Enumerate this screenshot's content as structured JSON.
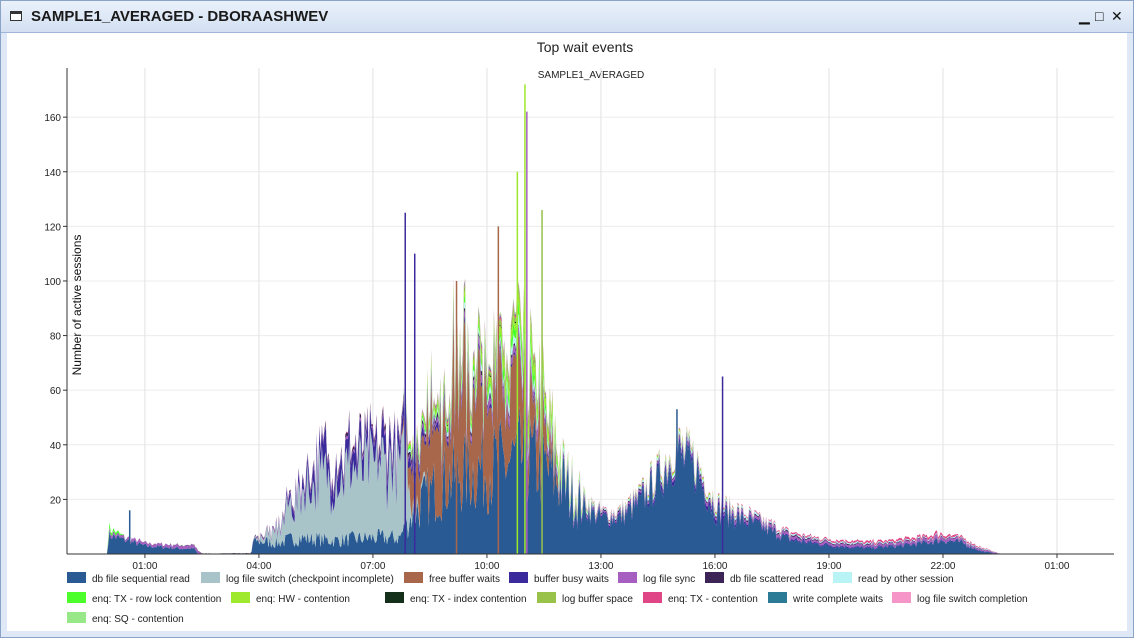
{
  "window": {
    "title": "SAMPLE1_AVERAGED - DBORAASHWEV",
    "min": "▁",
    "max": "□",
    "close": "✕"
  },
  "chart_data": {
    "type": "area",
    "title": "Top wait events",
    "subtitle": "SAMPLE1_AVERAGED",
    "ylabel": "Number of active sessions",
    "xlabel": "",
    "ylim": [
      0,
      178
    ],
    "yticks": [
      20,
      40,
      60,
      80,
      100,
      120,
      140,
      160
    ],
    "xlim_hours": [
      -1.05,
      26.5
    ],
    "xticks": [
      {
        "h": 1,
        "label": "01:00"
      },
      {
        "h": 4,
        "label": "04:00"
      },
      {
        "h": 7,
        "label": "07:00"
      },
      {
        "h": 10,
        "label": "10:00"
      },
      {
        "h": 13,
        "label": "13:00"
      },
      {
        "h": 16,
        "label": "16:00"
      },
      {
        "h": 19,
        "label": "19:00"
      },
      {
        "h": 22,
        "label": "22:00"
      },
      {
        "h": 25,
        "label": "01:00"
      }
    ],
    "grid": true,
    "legend_position": "bottom",
    "stacked": true,
    "series": [
      {
        "name": "db file sequential read",
        "color": "#2a5a94",
        "points": [
          [
            0,
            0
          ],
          [
            0.05,
            7
          ],
          [
            0.5,
            5
          ],
          [
            1,
            3
          ],
          [
            2,
            2
          ],
          [
            2.3,
            2
          ],
          [
            2.4,
            0
          ],
          [
            3.8,
            0
          ],
          [
            3.85,
            5
          ],
          [
            4.5,
            4
          ],
          [
            5,
            6
          ],
          [
            6,
            5
          ],
          [
            7,
            6
          ],
          [
            7.7,
            6
          ],
          [
            8,
            14
          ],
          [
            8.5,
            22
          ],
          [
            9,
            28
          ],
          [
            9.5,
            30
          ],
          [
            10,
            32
          ],
          [
            10.5,
            33
          ],
          [
            11,
            36
          ],
          [
            11.5,
            32
          ],
          [
            12,
            25
          ],
          [
            12.5,
            17
          ],
          [
            13,
            13
          ],
          [
            13.5,
            13
          ],
          [
            14,
            18
          ],
          [
            14.5,
            26
          ],
          [
            15,
            36
          ],
          [
            15.5,
            30
          ],
          [
            16,
            15
          ],
          [
            16.5,
            13
          ],
          [
            17,
            11
          ],
          [
            17.5,
            8
          ],
          [
            18,
            5
          ],
          [
            19,
            3
          ],
          [
            20,
            2
          ],
          [
            21,
            3
          ],
          [
            22,
            5
          ],
          [
            22.5,
            4
          ],
          [
            23,
            1
          ],
          [
            23.5,
            0
          ],
          [
            26.5,
            0
          ]
        ]
      },
      {
        "name": "log file switch (checkpoint incomplete)",
        "color": "#a9c4c8",
        "points": [
          [
            0,
            0
          ],
          [
            3.85,
            0
          ],
          [
            4.5,
            5
          ],
          [
            5,
            15
          ],
          [
            5.5,
            22
          ],
          [
            6,
            24
          ],
          [
            6.5,
            25
          ],
          [
            7,
            26
          ],
          [
            7.5,
            27
          ],
          [
            7.9,
            24
          ],
          [
            8,
            4
          ],
          [
            8.5,
            0
          ],
          [
            26.5,
            0
          ]
        ]
      },
      {
        "name": "free buffer waits",
        "color": "#a8674a",
        "points": [
          [
            0,
            0
          ],
          [
            7.7,
            0
          ],
          [
            8,
            10
          ],
          [
            8.5,
            25
          ],
          [
            9,
            30
          ],
          [
            9.5,
            32
          ],
          [
            10,
            28
          ],
          [
            10.5,
            26
          ],
          [
            11,
            22
          ],
          [
            11.5,
            10
          ],
          [
            12,
            0
          ],
          [
            26.5,
            0
          ]
        ]
      },
      {
        "name": "buffer busy waits",
        "color": "#3b2a9c",
        "points": [
          [
            0,
            0
          ],
          [
            4.4,
            0
          ],
          [
            5,
            3
          ],
          [
            5.5,
            6
          ],
          [
            6,
            7
          ],
          [
            7,
            6
          ],
          [
            7.5,
            6
          ],
          [
            8,
            3
          ],
          [
            9,
            1.5
          ],
          [
            10,
            1
          ],
          [
            12,
            1
          ],
          [
            13,
            0.5
          ],
          [
            15,
            1.5
          ],
          [
            16,
            1.5
          ],
          [
            17,
            0.5
          ],
          [
            26.5,
            0
          ]
        ]
      },
      {
        "name": "log file sync",
        "color": "#a65fc1",
        "points": [
          [
            0,
            0
          ],
          [
            0.05,
            1
          ],
          [
            2.4,
            1
          ],
          [
            2.5,
            0
          ],
          [
            3.8,
            0
          ],
          [
            4,
            0.5
          ],
          [
            8,
            1
          ],
          [
            10,
            2
          ],
          [
            11,
            3
          ],
          [
            12,
            1
          ],
          [
            13,
            0.5
          ],
          [
            16,
            1
          ],
          [
            20,
            0.8
          ],
          [
            22,
            1
          ],
          [
            23,
            0.5
          ],
          [
            23.5,
            0
          ],
          [
            26.5,
            0
          ]
        ]
      },
      {
        "name": "db file scattered read",
        "color": "#3c2456",
        "points": [
          [
            0,
            0
          ],
          [
            4,
            0.3
          ],
          [
            8,
            1.5
          ],
          [
            10,
            1
          ],
          [
            12,
            0.5
          ],
          [
            16,
            0.5
          ],
          [
            20,
            0.3
          ],
          [
            23,
            0.2
          ],
          [
            23.5,
            0
          ],
          [
            26.5,
            0
          ]
        ]
      },
      {
        "name": "read by other session",
        "color": "#b8f4f6",
        "points": [
          [
            0,
            0
          ],
          [
            7.5,
            0
          ],
          [
            8,
            1
          ],
          [
            10,
            2
          ],
          [
            11,
            3
          ],
          [
            12,
            1.5
          ],
          [
            13,
            0.5
          ],
          [
            15,
            1.2
          ],
          [
            16,
            1
          ],
          [
            18,
            0.5
          ],
          [
            23,
            0.3
          ],
          [
            23.5,
            0
          ],
          [
            26.5,
            0
          ]
        ]
      },
      {
        "name": "enq: TX - row lock contention",
        "color": "#4dff2a",
        "points": [
          [
            0,
            0
          ],
          [
            0.05,
            1.5
          ],
          [
            0.5,
            0
          ],
          [
            7.7,
            0
          ],
          [
            8,
            1
          ],
          [
            10,
            2
          ],
          [
            11,
            4
          ],
          [
            12,
            1
          ],
          [
            13,
            0
          ],
          [
            26.5,
            0
          ]
        ]
      },
      {
        "name": "enq: HW - contention",
        "color": "#9ee82e",
        "points": [
          [
            0,
            0
          ],
          [
            7.8,
            0
          ],
          [
            8,
            1
          ],
          [
            10,
            2.5
          ],
          [
            11,
            5
          ],
          [
            11.8,
            3
          ],
          [
            12,
            0.5
          ],
          [
            13,
            0
          ],
          [
            15,
            0.8
          ],
          [
            16,
            0.5
          ],
          [
            17,
            0
          ],
          [
            26.5,
            0
          ]
        ]
      },
      {
        "name": "enq: TX - index contention",
        "color": "#14301b",
        "points": [
          [
            0,
            0
          ],
          [
            8,
            0
          ],
          [
            9,
            0.3
          ],
          [
            11,
            0.5
          ],
          [
            12,
            0
          ],
          [
            26.5,
            0
          ]
        ]
      },
      {
        "name": "log buffer space",
        "color": "#98c24a",
        "points": [
          [
            0,
            0
          ],
          [
            8,
            0
          ],
          [
            9,
            0.8
          ],
          [
            10,
            1.2
          ],
          [
            11,
            2
          ],
          [
            12,
            0.5
          ],
          [
            13,
            0
          ],
          [
            26.5,
            0
          ]
        ]
      },
      {
        "name": "enq: TX - contention",
        "color": "#e04686",
        "points": [
          [
            0,
            0
          ],
          [
            4,
            0
          ],
          [
            8,
            0.3
          ],
          [
            10,
            0.8
          ],
          [
            12,
            0.3
          ],
          [
            16,
            0.3
          ],
          [
            20,
            0.6
          ],
          [
            22,
            0.8
          ],
          [
            23,
            0.3
          ],
          [
            23.5,
            0
          ],
          [
            26.5,
            0
          ]
        ]
      },
      {
        "name": "write complete waits",
        "color": "#2b7b96",
        "points": [
          [
            0,
            0
          ],
          [
            8,
            0
          ],
          [
            9,
            0.5
          ],
          [
            10,
            0.5
          ],
          [
            12,
            0
          ],
          [
            26.5,
            0
          ]
        ]
      },
      {
        "name": "log file switch completion",
        "color": "#f595c8",
        "points": [
          [
            0,
            0
          ],
          [
            7,
            0
          ],
          [
            8,
            0.3
          ],
          [
            10,
            0.5
          ],
          [
            12,
            0.2
          ],
          [
            13,
            0
          ],
          [
            26.5,
            0
          ]
        ]
      },
      {
        "name": "enq: SQ - contention",
        "color": "#98e88a",
        "points": [
          [
            0,
            0
          ],
          [
            8,
            0
          ],
          [
            10,
            0.4
          ],
          [
            11,
            0.6
          ],
          [
            12,
            0.2
          ],
          [
            13,
            0
          ],
          [
            26.5,
            0
          ]
        ]
      }
    ],
    "spikes": [
      {
        "h": 0.6,
        "v": 16,
        "color": "#2a5a94"
      },
      {
        "h": 7.85,
        "v": 125,
        "color": "#3b2a9c"
      },
      {
        "h": 8.1,
        "v": 110,
        "color": "#3b2a9c"
      },
      {
        "h": 9.2,
        "v": 100,
        "color": "#a8674a"
      },
      {
        "h": 10.3,
        "v": 120,
        "color": "#a8674a"
      },
      {
        "h": 10.8,
        "v": 140,
        "color": "#9ee82e"
      },
      {
        "h": 11.0,
        "v": 172,
        "color": "#9ee82e"
      },
      {
        "h": 11.05,
        "v": 162,
        "color": "#a65fc1"
      },
      {
        "h": 11.45,
        "v": 126,
        "color": "#98c24a"
      },
      {
        "h": 16.2,
        "v": 65,
        "color": "#3b2a9c"
      },
      {
        "h": 15.0,
        "v": 53,
        "color": "#2a5a94"
      }
    ]
  }
}
